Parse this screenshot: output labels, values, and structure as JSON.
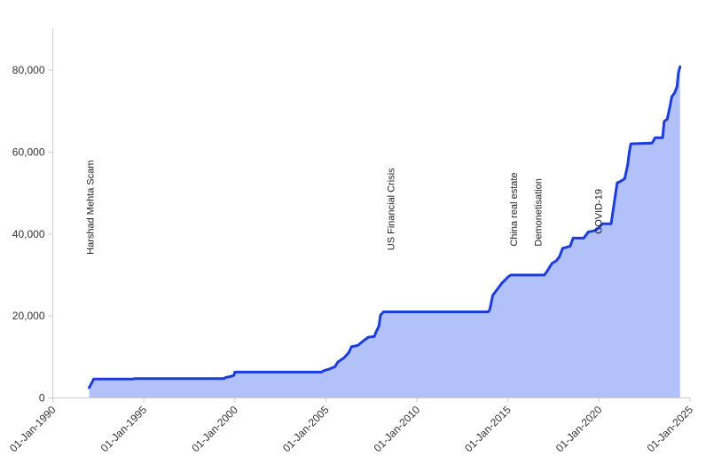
{
  "chart_data": {
    "type": "area",
    "title": "",
    "xlabel": "",
    "ylabel": "",
    "x_axis": {
      "type": "date",
      "range": [
        "1990-01-01",
        "2025-01-01"
      ],
      "ticks": [
        {
          "date": "1990-01-01",
          "label": "01-Jan-1990"
        },
        {
          "date": "1995-01-01",
          "label": "01-Jan-1995"
        },
        {
          "date": "2000-01-01",
          "label": "01-Jan-2000"
        },
        {
          "date": "2005-01-01",
          "label": "01-Jan-2005"
        },
        {
          "date": "2010-01-01",
          "label": "01-Jan-2010"
        },
        {
          "date": "2015-01-01",
          "label": "01-Jan-2015"
        },
        {
          "date": "2020-01-01",
          "label": "01-Jan-2020"
        },
        {
          "date": "2025-01-01",
          "label": "01-Jan-2025"
        }
      ]
    },
    "y_axis": {
      "range": [
        0,
        88000
      ],
      "ticks": [
        {
          "value": 0,
          "label": "0"
        },
        {
          "value": 20000,
          "label": "20,000"
        },
        {
          "value": 40000,
          "label": "40,000"
        },
        {
          "value": 60000,
          "label": "60,000"
        },
        {
          "value": 80000,
          "label": "80,000"
        }
      ]
    },
    "grid": false,
    "colors": {
      "line": "#1a3ddb",
      "fill": "#b3c1fb",
      "axis": "#cccccc"
    },
    "series": [
      {
        "points": [
          [
            "1992-01-01",
            2500
          ],
          [
            "1992-02-15",
            3500
          ],
          [
            "1992-04-01",
            4600
          ],
          [
            "1994-06-01",
            4600
          ],
          [
            "1994-07-01",
            4700
          ],
          [
            "1999-06-01",
            4700
          ],
          [
            "1999-07-01",
            5000
          ],
          [
            "1999-10-01",
            5200
          ],
          [
            "1999-12-15",
            5500
          ],
          [
            "2000-01-01",
            6300
          ],
          [
            "2004-10-01",
            6300
          ],
          [
            "2004-12-01",
            6700
          ],
          [
            "2005-03-01",
            7000
          ],
          [
            "2005-07-01",
            7600
          ],
          [
            "2005-09-01",
            8800
          ],
          [
            "2006-01-01",
            9800
          ],
          [
            "2006-04-01",
            11000
          ],
          [
            "2006-06-01",
            12500
          ],
          [
            "2006-10-01",
            12800
          ],
          [
            "2007-02-01",
            14000
          ],
          [
            "2007-05-01",
            14800
          ],
          [
            "2007-09-01",
            15000
          ],
          [
            "2007-10-01",
            16000
          ],
          [
            "2007-12-01",
            17500
          ],
          [
            "2008-01-01",
            20200
          ],
          [
            "2008-02-01",
            20600
          ],
          [
            "2008-03-01",
            21000
          ],
          [
            "2013-12-01",
            21000
          ],
          [
            "2014-01-01",
            21500
          ],
          [
            "2014-03-01",
            25000
          ],
          [
            "2014-06-01",
            26500
          ],
          [
            "2014-09-01",
            28000
          ],
          [
            "2015-01-01",
            29500
          ],
          [
            "2015-03-01",
            30000
          ],
          [
            "2017-01-01",
            30000
          ],
          [
            "2017-03-01",
            31000
          ],
          [
            "2017-06-01",
            32800
          ],
          [
            "2017-09-01",
            33500
          ],
          [
            "2017-11-01",
            34500
          ],
          [
            "2018-01-01",
            36500
          ],
          [
            "2018-06-01",
            37000
          ],
          [
            "2018-08-01",
            39000
          ],
          [
            "2019-03-01",
            39000
          ],
          [
            "2019-06-01",
            40500
          ],
          [
            "2019-10-01",
            40800
          ],
          [
            "2020-01-01",
            41500
          ],
          [
            "2020-03-01",
            42500
          ],
          [
            "2020-09-01",
            42500
          ],
          [
            "2020-10-01",
            45000
          ],
          [
            "2020-12-01",
            50000
          ],
          [
            "2021-01-01",
            52500
          ],
          [
            "2021-03-01",
            52800
          ],
          [
            "2021-06-01",
            53500
          ],
          [
            "2021-08-01",
            57000
          ],
          [
            "2021-09-01",
            60000
          ],
          [
            "2021-10-01",
            62000
          ],
          [
            "2022-12-01",
            62200
          ],
          [
            "2023-02-01",
            63500
          ],
          [
            "2023-07-01",
            63500
          ],
          [
            "2023-08-01",
            67500
          ],
          [
            "2023-10-01",
            68000
          ],
          [
            "2023-12-01",
            71500
          ],
          [
            "2024-01-01",
            73500
          ],
          [
            "2024-03-01",
            74500
          ],
          [
            "2024-04-15",
            76000
          ],
          [
            "2024-05-15",
            79500
          ],
          [
            "2024-06-15",
            80800
          ]
        ]
      }
    ],
    "annotations": [
      {
        "date": "1992-04-01",
        "y": 35000,
        "text": "Harshad Mehta Scam"
      },
      {
        "date": "2008-10-01",
        "y": 36000,
        "text": "US Financial Crisis"
      },
      {
        "date": "2015-07-01",
        "y": 37000,
        "text": "China real estate"
      },
      {
        "date": "2016-11-01",
        "y": 37000,
        "text": "Demonetisation"
      },
      {
        "date": "2020-03-01",
        "y": 40000,
        "text": "COVID-19"
      }
    ]
  }
}
